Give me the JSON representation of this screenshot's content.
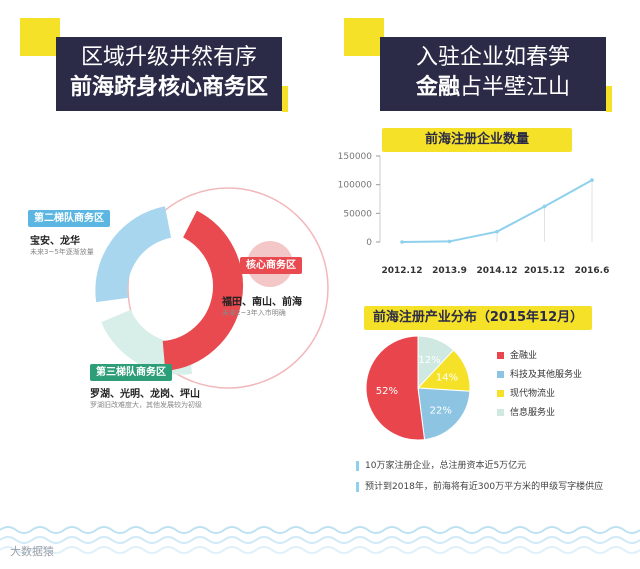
{
  "left_panel": {
    "title_line1": "区域升级井然有序",
    "title_line2": "前海跻身核心商务区",
    "tiers": [
      {
        "tag": "第二梯队商务区",
        "names": "宝安、龙华",
        "note": "未来3~5年逐渐放量",
        "color": "#5bb6e2"
      },
      {
        "tag": "核心商务区",
        "names": "福田、南山、前海",
        "note": "未来2~3年入市明确",
        "color": "#e84a4f"
      },
      {
        "tag": "第三梯队商务区",
        "names": "罗湖、光明、龙岗、坪山",
        "note": "罗湖旧改难度大，其他发展较为初级",
        "color": "#2d9e78"
      }
    ]
  },
  "right_panel": {
    "title_line1": "入驻企业如春笋",
    "title_line2_bold": "金融",
    "title_line2_rest": "占半壁江山",
    "notes": [
      "10万家注册企业，总注册资本近5万亿元",
      "预计到2018年，前海将有近300万平方米的甲级写字楼供应"
    ]
  },
  "chart_data": [
    {
      "type": "line",
      "title": "前海注册企业数量",
      "categories": [
        "2012.12",
        "2013.9",
        "2014.12",
        "2015.12",
        "2016.6"
      ],
      "series": [
        {
          "values": [
            0,
            1000,
            18000,
            62000,
            108000
          ]
        }
      ],
      "ylim": [
        0,
        150000
      ],
      "yticks": [
        "0",
        "50000",
        "100000",
        "150000"
      ],
      "color": "#8fd0ec"
    },
    {
      "type": "pie",
      "title": "前海注册产业分布（2015年12月）",
      "slices": [
        {
          "label": "金融业",
          "value": 52,
          "text": "52%",
          "color": "#e8454c"
        },
        {
          "label": "科技及其他服务业",
          "value": 22,
          "text": "22%",
          "color": "#8cc4e2"
        },
        {
          "label": "现代物流业",
          "value": 14,
          "text": "14%",
          "color": "#f5e228"
        },
        {
          "label": "信息服务业",
          "value": 12,
          "text": "12%",
          "color": "#cfe8e2"
        }
      ]
    }
  ],
  "footer": {
    "brand": "大数据猿"
  }
}
